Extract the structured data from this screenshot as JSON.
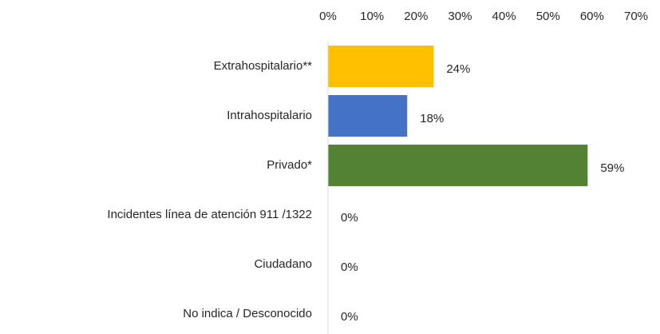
{
  "chart_data": {
    "type": "bar",
    "orientation": "horizontal",
    "categories": [
      "Extrahospitalario**",
      "Intrahospitalario",
      "Privado*",
      "Incidentes línea de atención 911 /1322",
      "Ciudadano",
      "No indica / Desconocido"
    ],
    "values": [
      24,
      18,
      59,
      0,
      0,
      0
    ],
    "value_labels": [
      "24%",
      "18%",
      "59%",
      "0%",
      "0%",
      "0%"
    ],
    "colors": [
      "#ffc000",
      "#4472c4",
      "#548235",
      "#a5a5a5",
      "#5b9bd5",
      "#ed7d31"
    ],
    "xlim": [
      0,
      70
    ],
    "xticks": [
      {
        "value": 0,
        "label": "0%"
      },
      {
        "value": 10,
        "label": "10%"
      },
      {
        "value": 20,
        "label": "20%"
      },
      {
        "value": 30,
        "label": "30%"
      },
      {
        "value": 40,
        "label": "40%"
      },
      {
        "value": 50,
        "label": "50%"
      },
      {
        "value": 60,
        "label": "60%"
      },
      {
        "value": 70,
        "label": "70%"
      }
    ],
    "grid": false
  }
}
